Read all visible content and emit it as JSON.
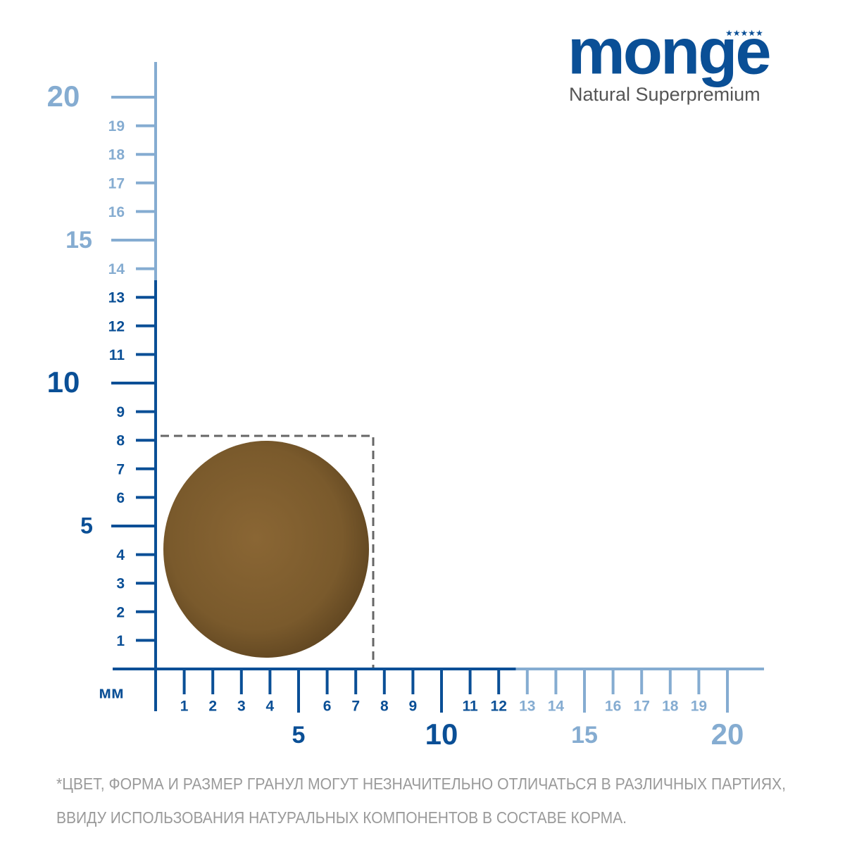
{
  "brand": {
    "name": "monge",
    "tagline": "Natural Superpremium"
  },
  "ruler": {
    "unit": "мм",
    "y_ticks": [
      1,
      2,
      3,
      4,
      5,
      6,
      7,
      8,
      9,
      10,
      11,
      12,
      13,
      14,
      15,
      16,
      17,
      18,
      19,
      20
    ],
    "x_ticks": [
      1,
      2,
      3,
      4,
      5,
      6,
      7,
      8,
      9,
      10,
      11,
      12,
      13,
      14,
      15,
      16,
      17,
      18,
      19,
      20
    ],
    "y_dark_through": 13,
    "x_dark_through": 12,
    "dark_color": "#0a4f96",
    "light_color": "#85acd1"
  },
  "note": [
    "*ЦВЕТ, ФОРМА И РАЗМЕР ГРАНУЛ МОГУТ НЕЗНАЧИТЕЛЬНО ОТЛИЧАТЬСЯ В РАЗЛИЧНЫХ ПАРТИЯХ,",
    "ВВИДУ ИСПОЛЬЗОВАНИЯ НАТУРАЛЬНЫХ КОМПОНЕНТОВ В СОСТАВЕ КОРМА."
  ]
}
